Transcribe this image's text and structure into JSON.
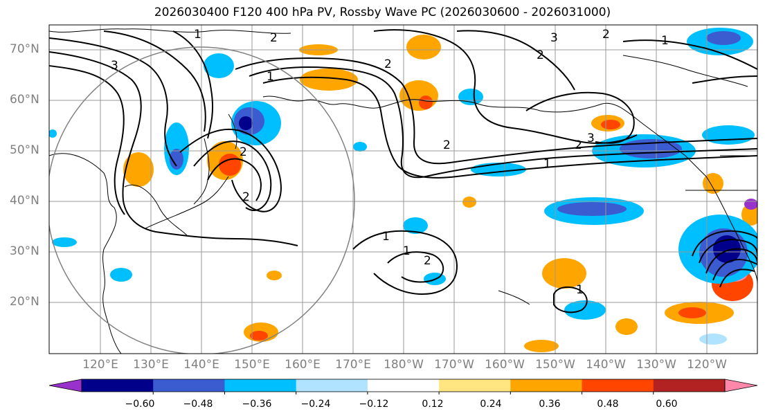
{
  "title": "2026030400 F120 400 hPa PV, Rossby Wave PC (2026030600 - 2026031000)",
  "lat_labels": [
    "70°N",
    "60°N",
    "50°N",
    "40°N",
    "30°N",
    "20°N"
  ],
  "lon_labels": [
    "120°E",
    "130°E",
    "140°E",
    "150°E",
    "160°E",
    "170°E",
    "180°W",
    "170°W",
    "160°W",
    "150°W",
    "140°W",
    "130°W",
    "120°W"
  ],
  "colorbar": {
    "ticks": [
      "−0.60",
      "−0.48",
      "−0.36",
      "−0.24",
      "−0.12",
      "0.12",
      "0.24",
      "0.36",
      "0.48",
      "0.60"
    ],
    "colors": [
      "#9932cc",
      "#00008b",
      "#3b5bd1",
      "#00bfff",
      "#afe3ff",
      "#ffffff",
      "#ffe680",
      "#ffa500",
      "#ff4500",
      "#b22222",
      "#ff88aa"
    ]
  },
  "contour_labels": [
    "1",
    "2",
    "3"
  ]
}
